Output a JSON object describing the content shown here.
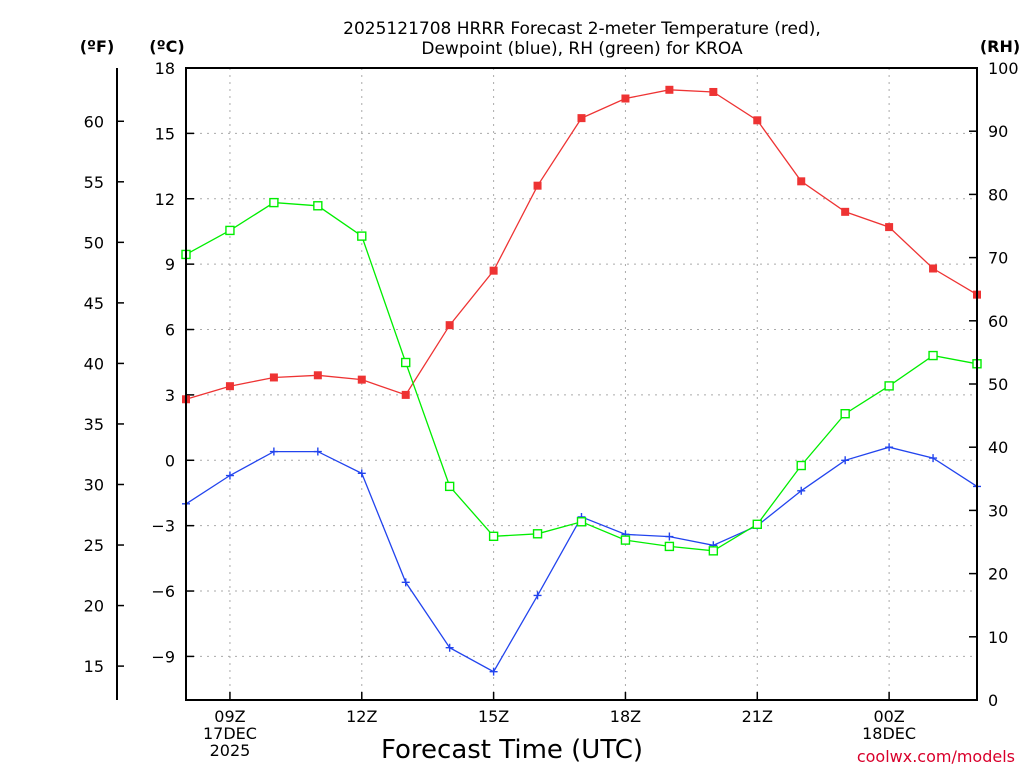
{
  "chart_data": {
    "type": "line",
    "title_line1": "2025121708 HRRR Forecast 2-meter Temperature (red),",
    "title_line2": "Dewpoint (blue), RH (green) for KROA",
    "xlabel": "Forecast Time (UTC)",
    "credit": "coolwx.com/models",
    "unit_f": "(ºF)",
    "unit_c": "(ºC)",
    "unit_rh": "(RH)",
    "x_hours": [
      8,
      9,
      10,
      11,
      12,
      13,
      14,
      15,
      16,
      17,
      18,
      19,
      20,
      21,
      22,
      23,
      24,
      25,
      26
    ],
    "xlim": [
      8,
      26
    ],
    "x_ticks": [
      {
        "hour": 9,
        "lines": [
          "09Z",
          "17DEC",
          "2025"
        ]
      },
      {
        "hour": 12,
        "lines": [
          "12Z"
        ]
      },
      {
        "hour": 15,
        "lines": [
          "15Z"
        ]
      },
      {
        "hour": 18,
        "lines": [
          "18Z"
        ]
      },
      {
        "hour": 21,
        "lines": [
          "21Z"
        ]
      },
      {
        "hour": 24,
        "lines": [
          "00Z",
          "18DEC"
        ]
      }
    ],
    "left_axis": {
      "label": "°C",
      "ylim": [
        -11,
        18
      ],
      "ticks": [
        18,
        15,
        12,
        9,
        6,
        3,
        0,
        -3,
        -6,
        -9
      ]
    },
    "far_left_axis": {
      "label": "°F",
      "ticks": [
        60,
        55,
        50,
        45,
        40,
        35,
        30,
        25,
        20,
        15
      ]
    },
    "right_axis": {
      "label": "RH",
      "ylim": [
        0,
        100
      ],
      "ticks": [
        100,
        90,
        80,
        70,
        60,
        50,
        40,
        30,
        20,
        10,
        0
      ]
    },
    "grid": true,
    "series": [
      {
        "name": "Temperature",
        "axis": "left",
        "color": "#ee3333",
        "marker": "filled-square",
        "values": [
          2.8,
          3.4,
          3.8,
          3.9,
          3.7,
          3.0,
          6.2,
          8.7,
          12.6,
          15.7,
          16.6,
          17.0,
          16.9,
          15.6,
          12.8,
          11.4,
          10.7,
          8.8,
          7.6
        ]
      },
      {
        "name": "Dewpoint",
        "axis": "left",
        "color": "#2244ee",
        "marker": "plus",
        "values": [
          -2.0,
          -0.7,
          0.4,
          0.4,
          -0.6,
          -5.6,
          -8.6,
          -9.7,
          -6.2,
          -2.6,
          -3.4,
          -3.5,
          -3.9,
          -3.0,
          -1.4,
          0.0,
          0.6,
          0.1,
          -1.2
        ]
      },
      {
        "name": "RH",
        "axis": "right",
        "color": "#00ee00",
        "marker": "open-square",
        "values": [
          70.5,
          74.3,
          78.7,
          78.2,
          73.4,
          53.4,
          33.8,
          25.9,
          26.3,
          28.2,
          25.3,
          24.3,
          23.6,
          27.8,
          37.1,
          45.3,
          49.7,
          54.5,
          53.2
        ]
      }
    ]
  }
}
